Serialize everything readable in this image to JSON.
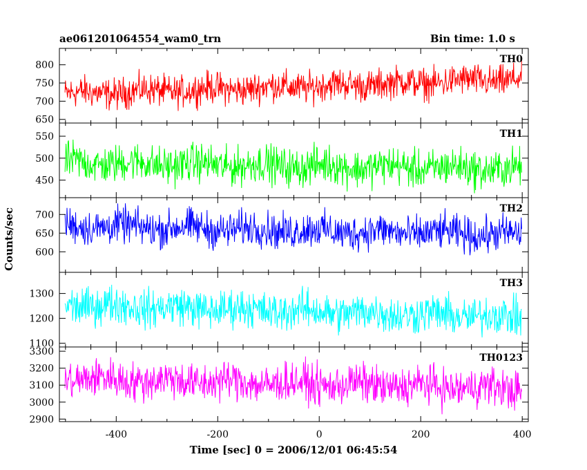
{
  "header": {
    "title": "ae061201064554_wam0_trn",
    "bin_time": "Bin time: 1.0 s"
  },
  "axes": {
    "xlabel": "Time [sec] 0 = 2006/12/01 06:45:54",
    "ylabel": "Counts/sec"
  },
  "chart_data": {
    "type": "line",
    "x": {
      "start": -501,
      "end": 399,
      "step": 1,
      "unit": "sec"
    },
    "xlim": [
      -512,
      412
    ],
    "xticks": [
      -400,
      -200,
      0,
      200,
      400
    ],
    "grid": false,
    "series": [
      {
        "name": "TH0",
        "color": "#ff0000",
        "ylim": [
          640,
          845
        ],
        "yticks": [
          650,
          700,
          750,
          800
        ],
        "trend_start": 720,
        "trend_end": 760,
        "noise_halfwidth": 45,
        "min": 640,
        "max": 845
      },
      {
        "name": "TH1",
        "color": "#00ff00",
        "ylim": [
          410,
          580
        ],
        "yticks": [
          450,
          500,
          550
        ],
        "trend_start": 490,
        "trend_end": 475,
        "noise_halfwidth": 45,
        "min": 410,
        "max": 580
      },
      {
        "name": "TH2",
        "color": "#0000ff",
        "ylim": [
          545,
          745
        ],
        "yticks": [
          600,
          650,
          700
        ],
        "trend_start": 670,
        "trend_end": 645,
        "noise_halfwidth": 50,
        "min": 550,
        "max": 745
      },
      {
        "name": "TH3",
        "color": "#00ffff",
        "ylim": [
          1085,
          1385
        ],
        "yticks": [
          1100,
          1200,
          1300
        ],
        "trend_start": 1255,
        "trend_end": 1205,
        "noise_halfwidth": 80,
        "min": 1090,
        "max": 1380
      },
      {
        "name": "TH0123",
        "color": "#ff00ff",
        "ylim": [
          2885,
          3325
        ],
        "yticks": [
          2900,
          3000,
          3100,
          3200,
          3300
        ],
        "trend_start": 3140,
        "trend_end": 3080,
        "noise_halfwidth": 120,
        "min": 2890,
        "max": 3320
      }
    ]
  }
}
